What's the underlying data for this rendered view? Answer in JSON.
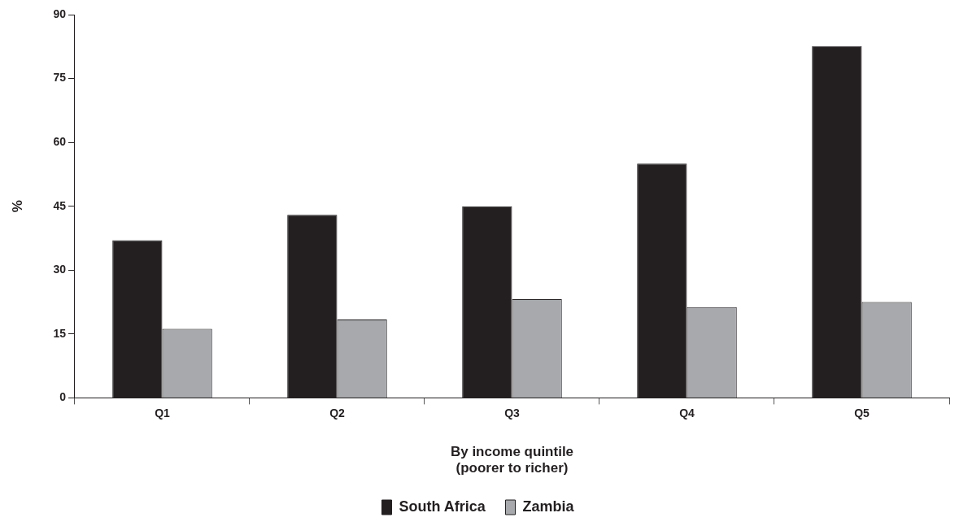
{
  "chart_data": {
    "type": "bar",
    "ylabel": "%",
    "xlabel": "By income quintile\n(poorer to richer)",
    "categories": [
      "Q1",
      "Q2",
      "Q3",
      "Q4",
      "Q5"
    ],
    "series": [
      {
        "name": "South Africa",
        "color": "#231f20",
        "values": [
          37,
          43,
          45,
          55,
          82.6
        ]
      },
      {
        "name": "Zambia",
        "color": "#a7a9ac",
        "values": [
          16.2,
          18.4,
          23.2,
          21.3,
          22.5
        ]
      }
    ],
    "ylim": [
      0,
      90
    ],
    "yticks": [
      0,
      15,
      30,
      45,
      60,
      75,
      90
    ],
    "grid": false,
    "legend": "bottom"
  }
}
